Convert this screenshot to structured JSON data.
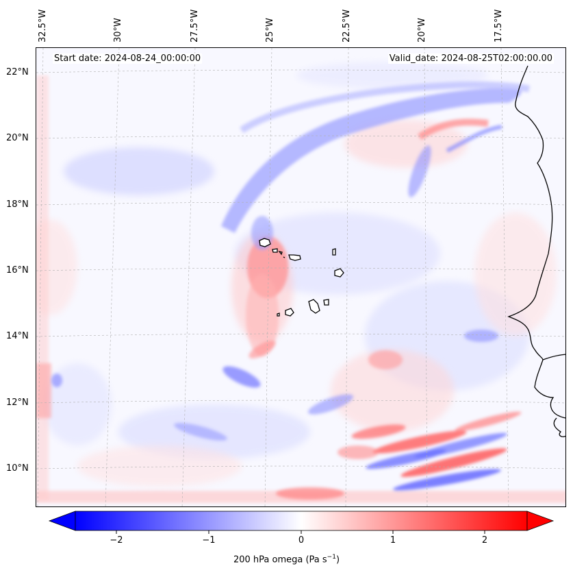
{
  "longitude_labels": [
    "32.5°W",
    "30°W",
    "27.5°W",
    "25°W",
    "22.5°W",
    "20°W",
    "17.5°W"
  ],
  "latitude_labels": [
    "22°N",
    "20°N",
    "18°N",
    "16°N",
    "14°N",
    "12°N",
    "10°N"
  ],
  "header": {
    "start_date": "Start date: 2024-08-24_00:00:00",
    "valid_date": "Valid_date: 2024-08-25T02:00:00.00"
  },
  "colorbar": {
    "label_prefix": "200 hPa omega (Pa s",
    "label_exponent": "−1",
    "label_suffix": ")",
    "ticks": [
      "−2",
      "−1",
      "0",
      "1",
      "2"
    ],
    "range": [
      -2.6,
      2.6
    ],
    "colors": {
      "negative": "#0000ff",
      "zero": "#ffffff",
      "positive": "#ff0000"
    }
  },
  "map": {
    "extent_lon": [
      -32.8,
      -15.6
    ],
    "extent_lat": [
      8.8,
      22.8
    ],
    "grid": true,
    "coastline_color": "#000000"
  }
}
